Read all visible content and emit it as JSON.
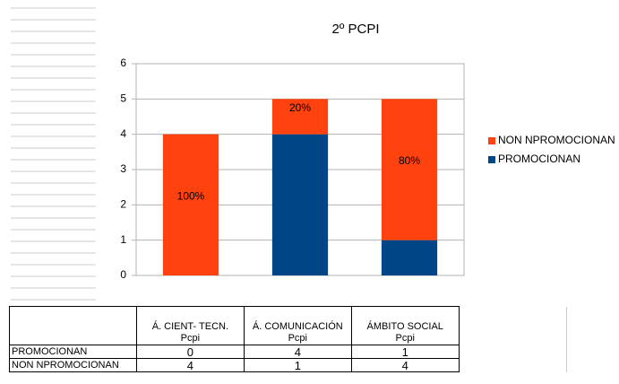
{
  "chart_data": {
    "type": "stacked_bar",
    "title": "2º PCPI",
    "categories": [
      "Á. CIENT- TECN.\nPcpi",
      "Á. COMUNICACIÓN\nPcpi",
      "ÁMBITO SOCIAL\nPcpi"
    ],
    "series": [
      {
        "name": "PROMOCIONAN",
        "color": "#004586",
        "values": [
          0,
          4,
          1
        ],
        "labels": [
          null,
          null,
          null
        ]
      },
      {
        "name": "NON NPROMOCIONAN",
        "color": "#ff420e",
        "values": [
          4,
          1,
          4
        ],
        "labels": [
          "100%",
          "20%",
          "80%"
        ]
      }
    ],
    "ylim": [
      0,
      6
    ],
    "yticks": [
      0,
      1,
      2,
      3,
      4,
      5,
      6
    ],
    "grid": true,
    "legend": "right"
  }
}
